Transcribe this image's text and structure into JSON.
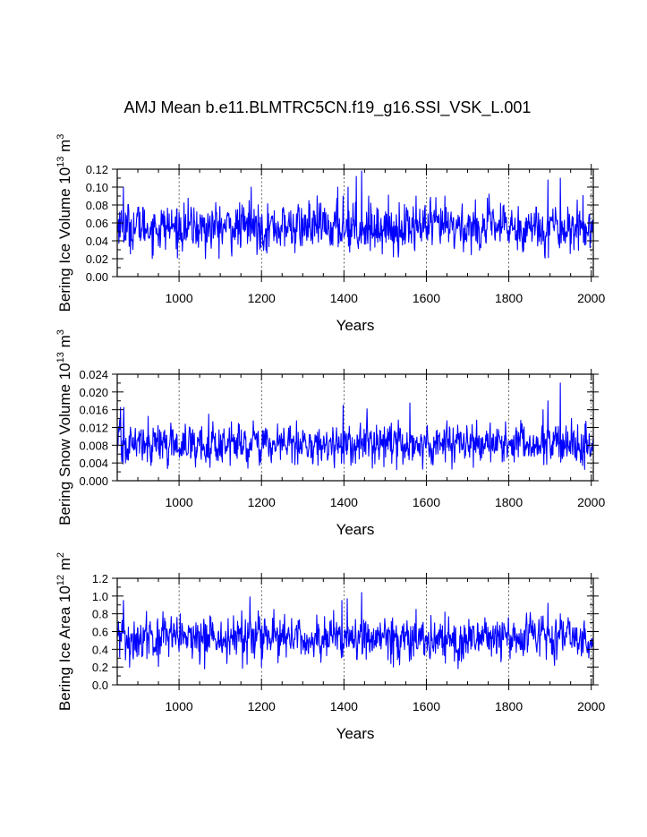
{
  "figure": {
    "title": "AMJ Mean b.e11.BLMTRC5CN.f19_g16.SSI_VSK_L.001"
  },
  "colors": {
    "series": "#0000ff",
    "axis": "#000000",
    "grid": "#000000",
    "background": "#ffffff"
  },
  "chart_data": [
    {
      "type": "line",
      "ylabel": {
        "main": "Bering Ice Volume 10",
        "exp": "13",
        "unit": " m",
        "unitExp": "3"
      },
      "xlabel": "Years",
      "xlim": [
        850,
        2005
      ],
      "ylim": [
        0,
        0.12
      ],
      "yticks": [
        0,
        0.02,
        0.04,
        0.06,
        0.08,
        0.1,
        0.12
      ],
      "yticklabels": [
        "0.00",
        "0.02",
        "0.04",
        "0.06",
        "0.08",
        "0.10",
        "0.12"
      ],
      "yminor": 0.01,
      "xticks": [
        1000,
        1200,
        1400,
        1600,
        1800,
        2000
      ],
      "xticklabels": [
        "1000",
        "1200",
        "1400",
        "1600",
        "1800",
        "2000"
      ],
      "xminor": 50,
      "grid": "vertical dashed at major x ticks",
      "series": [
        {
          "mean": 0.055,
          "sd": 0.013,
          "min": 0.02,
          "max": 0.118,
          "anchors": [
            [
              856,
              0.072
            ],
            [
              865,
              0.1
            ],
            [
              905,
              0.072
            ],
            [
              1000,
              0.072
            ],
            [
              1050,
              0.048
            ],
            [
              1064,
              0.02
            ],
            [
              1170,
              0.085
            ],
            [
              1175,
              0.1
            ],
            [
              1315,
              0.085
            ],
            [
              1385,
              0.1
            ],
            [
              1398,
              0.09
            ],
            [
              1410,
              0.1
            ],
            [
              1430,
              0.112
            ],
            [
              1443,
              0.118
            ],
            [
              1460,
              0.09
            ],
            [
              1520,
              0.022
            ],
            [
              1575,
              0.09
            ],
            [
              1645,
              0.09
            ],
            [
              1788,
              0.08
            ],
            [
              1895,
              0.108
            ],
            [
              1925,
              0.11
            ],
            [
              1958,
              0.03
            ]
          ]
        }
      ]
    },
    {
      "type": "line",
      "ylabel": {
        "main": "Bering Snow Volume 10",
        "exp": "13",
        "unit": " m",
        "unitExp": "3"
      },
      "xlabel": "Years",
      "xlim": [
        850,
        2005
      ],
      "ylim": [
        0,
        0.024
      ],
      "yticks": [
        0,
        0.004,
        0.008,
        0.012,
        0.016,
        0.02,
        0.024
      ],
      "yticklabels": [
        "0.000",
        "0.004",
        "0.008",
        "0.012",
        "0.016",
        "0.020",
        "0.024"
      ],
      "yminor": 0.002,
      "xticks": [
        1000,
        1200,
        1400,
        1600,
        1800,
        2000
      ],
      "xticklabels": [
        "1000",
        "1200",
        "1400",
        "1600",
        "1800",
        "2000"
      ],
      "xminor": 50,
      "grid": "vertical dashed at major x ticks",
      "series": [
        {
          "mean": 0.0082,
          "sd": 0.0022,
          "min": 0.0025,
          "max": 0.022,
          "anchors": [
            [
              858,
              0.0165
            ],
            [
              866,
              0.0165
            ],
            [
              870,
              0.004
            ],
            [
              925,
              0.0145
            ],
            [
              1072,
              0.015
            ],
            [
              1075,
              0.003
            ],
            [
              1285,
              0.0135
            ],
            [
              1398,
              0.017
            ],
            [
              1440,
              0.013
            ],
            [
              1528,
              0.0025
            ],
            [
              1560,
              0.0175
            ],
            [
              1650,
              0.0135
            ],
            [
              1883,
              0.016
            ],
            [
              1895,
              0.018
            ],
            [
              1925,
              0.022
            ],
            [
              1930,
              0.005
            ]
          ]
        }
      ]
    },
    {
      "type": "line",
      "ylabel": {
        "main": "Bering Ice Area 10",
        "exp": "12",
        "unit": " m",
        "unitExp": "2"
      },
      "xlabel": "Years",
      "xlim": [
        850,
        2005
      ],
      "ylim": [
        0,
        1.2
      ],
      "yticks": [
        0,
        0.2,
        0.4,
        0.6,
        0.8,
        1.0,
        1.2
      ],
      "yticklabels": [
        "0.0",
        "0.2",
        "0.4",
        "0.6",
        "0.8",
        "1.0",
        "1.2"
      ],
      "yminor": 0.1,
      "xticks": [
        1000,
        1200,
        1400,
        1600,
        1800,
        2000
      ],
      "xticklabels": [
        "1000",
        "1200",
        "1400",
        "1600",
        "1800",
        "2000"
      ],
      "xminor": 50,
      "grid": "vertical dashed at major x ticks",
      "series": [
        {
          "mean": 0.52,
          "sd": 0.12,
          "min": 0.18,
          "max": 1.04,
          "anchors": [
            [
              865,
              0.95
            ],
            [
              870,
              0.28
            ],
            [
              1003,
              0.8
            ],
            [
              1062,
              0.18
            ],
            [
              1172,
              0.99
            ],
            [
              1200,
              0.2
            ],
            [
              1395,
              0.95
            ],
            [
              1408,
              0.97
            ],
            [
              1443,
              1.04
            ],
            [
              1520,
              0.2
            ],
            [
              1575,
              0.85
            ],
            [
              1645,
              0.82
            ],
            [
              1895,
              0.92
            ],
            [
              1925,
              0.8
            ]
          ]
        }
      ]
    }
  ]
}
